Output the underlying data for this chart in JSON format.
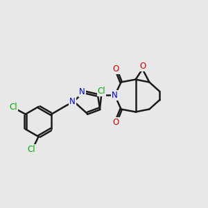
{
  "background_color": "#e8e8e8",
  "bond_color": "#1a1a1a",
  "bond_width": 1.8,
  "atom_colors": {
    "Cl": "#00aa00",
    "N": "#0000cc",
    "O": "#cc0000",
    "C": "#1a1a1a"
  },
  "font_size_atom": 8.5,
  "figsize": [
    3.0,
    3.0
  ],
  "dpi": 100
}
